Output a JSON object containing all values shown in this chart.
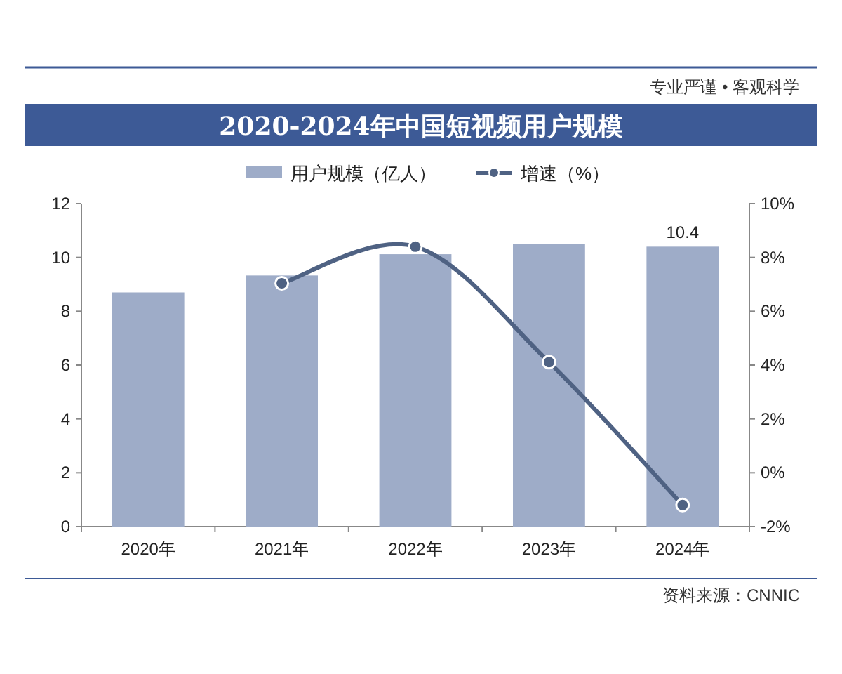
{
  "chart_data": {
    "type": "bar",
    "title": "2020-2024年中国短视频用户规模",
    "categories": [
      "2020年",
      "2021年",
      "2022年",
      "2023年",
      "2024年"
    ],
    "series": [
      {
        "name": "用户规模（亿人）",
        "color": "#9eacc8",
        "values": [
          8.7,
          9.33,
          10.12,
          10.51,
          10.4
        ],
        "value_labels": [
          null,
          null,
          null,
          null,
          "10.4"
        ]
      },
      {
        "name": "增速（%）",
        "type": "line",
        "axis": "y2",
        "color": "#4f6283",
        "values": [
          null,
          7.04,
          8.4,
          4.11,
          -1.2
        ]
      }
    ],
    "ylim": [
      0,
      12
    ],
    "yticks": [
      0,
      2,
      4,
      6,
      8,
      10,
      12
    ],
    "y2lim": [
      -2,
      10
    ],
    "y2ticks": [
      {
        "value": -2,
        "label": "-2%"
      },
      {
        "value": 0,
        "label": "0%"
      },
      {
        "value": 2,
        "label": "2%"
      },
      {
        "value": 4,
        "label": "4%"
      },
      {
        "value": 6,
        "label": "6%"
      },
      {
        "value": 8,
        "label": "8%"
      },
      {
        "value": 10,
        "label": "10%"
      }
    ],
    "marker": "circle",
    "legend": "top",
    "annotations": [
      "专业严谨 • 客观科学",
      "资料来源：CNNIC"
    ]
  }
}
